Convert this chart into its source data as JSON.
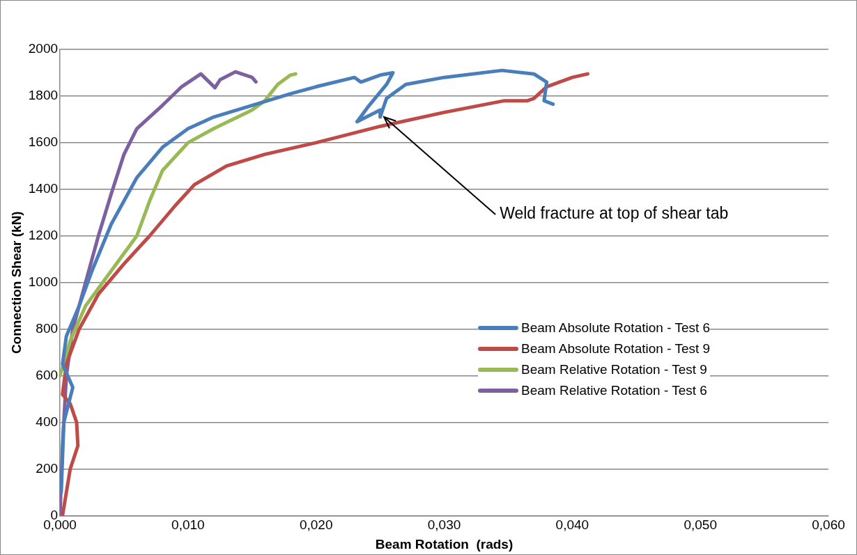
{
  "chart_data": {
    "type": "line",
    "xlabel": "Beam Rotation  (rads)",
    "ylabel": "Connection Shear (kN)",
    "marker": "none",
    "grid": "y",
    "legend": "right",
    "line_style": "solid",
    "xlim": [
      0,
      0.06
    ],
    "xticks": [
      {
        "value": 0,
        "label": "0,000"
      },
      {
        "value": 0.01,
        "label": "0,010"
      },
      {
        "value": 0.02,
        "label": "0,020"
      },
      {
        "value": 0.03,
        "label": "0,030"
      },
      {
        "value": 0.04,
        "label": "0,040"
      },
      {
        "value": 0.05,
        "label": "0,050"
      },
      {
        "value": 0.06,
        "label": "0,060"
      }
    ],
    "ylim": [
      0,
      2000
    ],
    "yticks": [
      0,
      200,
      400,
      600,
      800,
      1000,
      1200,
      1400,
      1600,
      1800,
      2000
    ],
    "annotations": [
      {
        "text": "Weld fracture at top of shear tab",
        "x": 0.0253,
        "y": 1710
      }
    ],
    "series": [
      {
        "name": "Beam Absolute Rotation - Test 6",
        "color": "#4a7ebb",
        "x": [
          0.0001,
          0.0003,
          0.001,
          0.0002,
          0.0005,
          0.0015,
          0.0025,
          0.004,
          0.006,
          0.008,
          0.01,
          0.012,
          0.015,
          0.018,
          0.02,
          0.023,
          0.0235,
          0.025,
          0.026,
          0.0255,
          0.024,
          0.0232,
          0.025,
          0.025,
          0.0255,
          0.027,
          0.03,
          0.0345,
          0.037,
          0.038,
          0.0378,
          0.0385
        ],
        "values": [
          100,
          400,
          550,
          650,
          770,
          900,
          1050,
          1250,
          1450,
          1580,
          1660,
          1710,
          1760,
          1810,
          1840,
          1880,
          1860,
          1890,
          1900,
          1850,
          1750,
          1690,
          1740,
          1710,
          1790,
          1850,
          1880,
          1910,
          1895,
          1860,
          1780,
          1765
        ]
      },
      {
        "name": "Beam Absolute Rotation - Test 9",
        "color": "#be4b48",
        "x": [
          0.0002,
          0.0005,
          0.0008,
          0.0014,
          0.0013,
          0.0008,
          0.0002,
          0.0005,
          0.0015,
          0.003,
          0.005,
          0.007,
          0.009,
          0.0105,
          0.013,
          0.016,
          0.02,
          0.025,
          0.03,
          0.0347,
          0.0365,
          0.037,
          0.038,
          0.04,
          0.0412
        ],
        "values": [
          0,
          100,
          200,
          300,
          400,
          480,
          520,
          650,
          800,
          950,
          1080,
          1200,
          1330,
          1420,
          1500,
          1550,
          1600,
          1670,
          1730,
          1780,
          1780,
          1790,
          1840,
          1880,
          1895
        ]
      },
      {
        "name": "Beam Relative Rotation - Test 9",
        "color": "#98b954",
        "x": [
          0,
          0.0008,
          0.002,
          0.004,
          0.006,
          0.007,
          0.008,
          0.01,
          0.012,
          0.015,
          0.016,
          0.017,
          0.018,
          0.0184
        ],
        "values": [
          600,
          750,
          900,
          1050,
          1200,
          1350,
          1480,
          1600,
          1660,
          1740,
          1780,
          1850,
          1890,
          1895
        ]
      },
      {
        "name": "Beam Relative Rotation - Test 6",
        "color": "#7d60a0",
        "x": [
          0,
          0.0002,
          0.0005,
          0.001,
          0.002,
          0.003,
          0.004,
          0.005,
          0.006,
          0.008,
          0.0095,
          0.011,
          0.0121,
          0.0125,
          0.0137,
          0.015,
          0.0153
        ],
        "values": [
          0,
          300,
          600,
          800,
          1000,
          1200,
          1380,
          1550,
          1660,
          1760,
          1840,
          1895,
          1836,
          1870,
          1904,
          1880,
          1861
        ]
      }
    ]
  }
}
